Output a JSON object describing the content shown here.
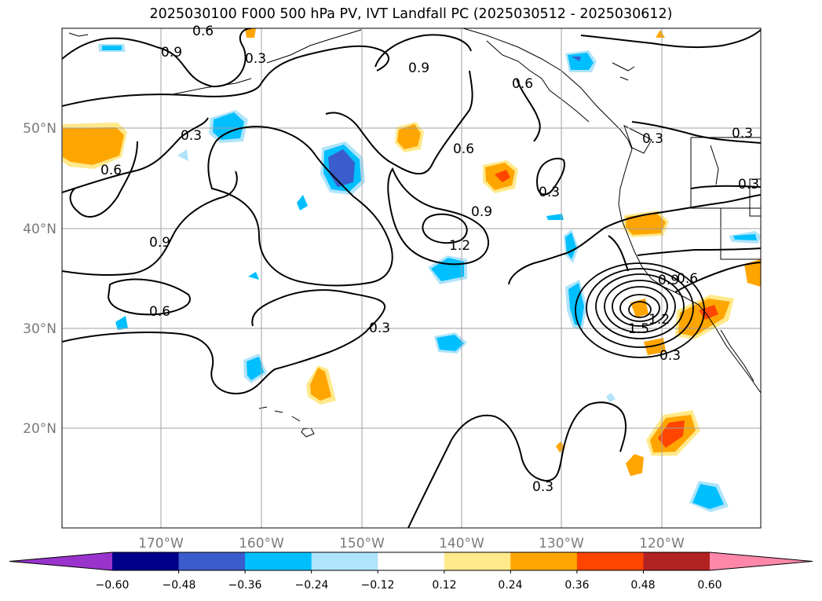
{
  "title": "2025030100 F000 500 hPa PV, IVT Landfall PC (2025030512 - 2025030612)",
  "lat_ticks": [
    "50°N",
    "40°N",
    "30°N",
    "20°N"
  ],
  "lon_ticks": [
    "170°W",
    "160°W",
    "150°W",
    "140°W",
    "130°W",
    "120°W"
  ],
  "colorbar": {
    "ticks": [
      "−0.60",
      "−0.48",
      "−0.36",
      "−0.24",
      "−0.12",
      "0.12",
      "0.24",
      "0.36",
      "0.48",
      "0.60"
    ],
    "colors": [
      "#9933cc",
      "#00008b",
      "#3a5ccc",
      "#00bfff",
      "#afe4fa",
      "#ffffff",
      "#ffe98a",
      "#ffa500",
      "#ff4500",
      "#b22222",
      "#ff88aa"
    ]
  },
  "contour_labels": [
    "0.9",
    "0.6",
    "0.3",
    "0.9",
    "0.6",
    "0.3",
    "0.6",
    "0.9",
    "1.2",
    "0.3",
    "0.6",
    "0.3",
    "0.9",
    "0.6",
    "0.3",
    "0.9",
    "0.6",
    "1.5",
    "1.2",
    "0.3",
    "0.3",
    "0.3",
    "0.3"
  ]
}
